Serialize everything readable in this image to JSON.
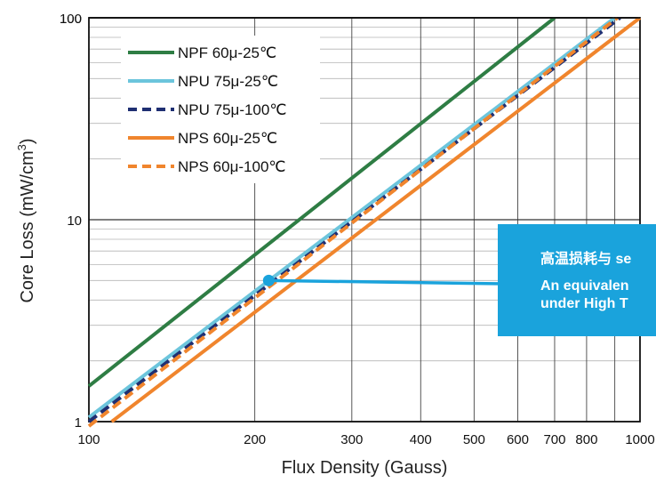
{
  "chart_data": {
    "type": "line",
    "x_scale": "log",
    "y_scale": "log",
    "xlim": [
      100,
      1000
    ],
    "ylim": [
      1,
      100
    ],
    "xlabel": "Flux Density (Gauss)",
    "ylabel": "Core Loss (mW/cm",
    "ylabel_sup": "3",
    "ylabel_close": ")",
    "x_ticks": [
      {
        "value": 100,
        "label": "100"
      },
      {
        "value": 200,
        "label": "200"
      },
      {
        "value": 300,
        "label": "300"
      },
      {
        "value": 400,
        "label": "400"
      },
      {
        "value": 500,
        "label": "500"
      },
      {
        "value": 600,
        "label": "600"
      },
      {
        "value": 700,
        "label": "700"
      },
      {
        "value": 800,
        "label": "800"
      },
      {
        "value": 1000,
        "label": "1000"
      }
    ],
    "y_ticks": [
      {
        "value": 1,
        "label": "1"
      },
      {
        "value": 10,
        "label": "10"
      },
      {
        "value": 100,
        "label": "100"
      }
    ],
    "grid": true,
    "legend_position": "top-left",
    "series": [
      {
        "name": "NPF 60μ-25℃",
        "color": "#2e7d44",
        "style": "solid",
        "x": [
          100,
          700
        ],
        "y": [
          1.5,
          100
        ]
      },
      {
        "name": "NPU 75μ-25℃",
        "color": "#6cc5dc",
        "style": "solid",
        "x": [
          100,
          900
        ],
        "y": [
          1.05,
          100
        ]
      },
      {
        "name": "NPU 75μ-100℃",
        "color": "#1f2f72",
        "style": "dashed",
        "x": [
          100,
          920
        ],
        "y": [
          1.0,
          100
        ]
      },
      {
        "name": "NPS 60μ-25℃",
        "color": "#f0852d",
        "style": "solid",
        "x": [
          110,
          1000
        ],
        "y": [
          1.0,
          100
        ]
      },
      {
        "name": "NPS 60μ-100℃",
        "color": "#f0852d",
        "style": "dashed",
        "x": [
          100,
          910
        ],
        "y": [
          0.95,
          100
        ]
      }
    ],
    "annotation": {
      "point": {
        "x": 212,
        "y": 5.0
      },
      "color": "#1aa3dc",
      "lines": [
        "高温损耗与 se",
        "An equivalen",
        "under High T"
      ]
    }
  }
}
